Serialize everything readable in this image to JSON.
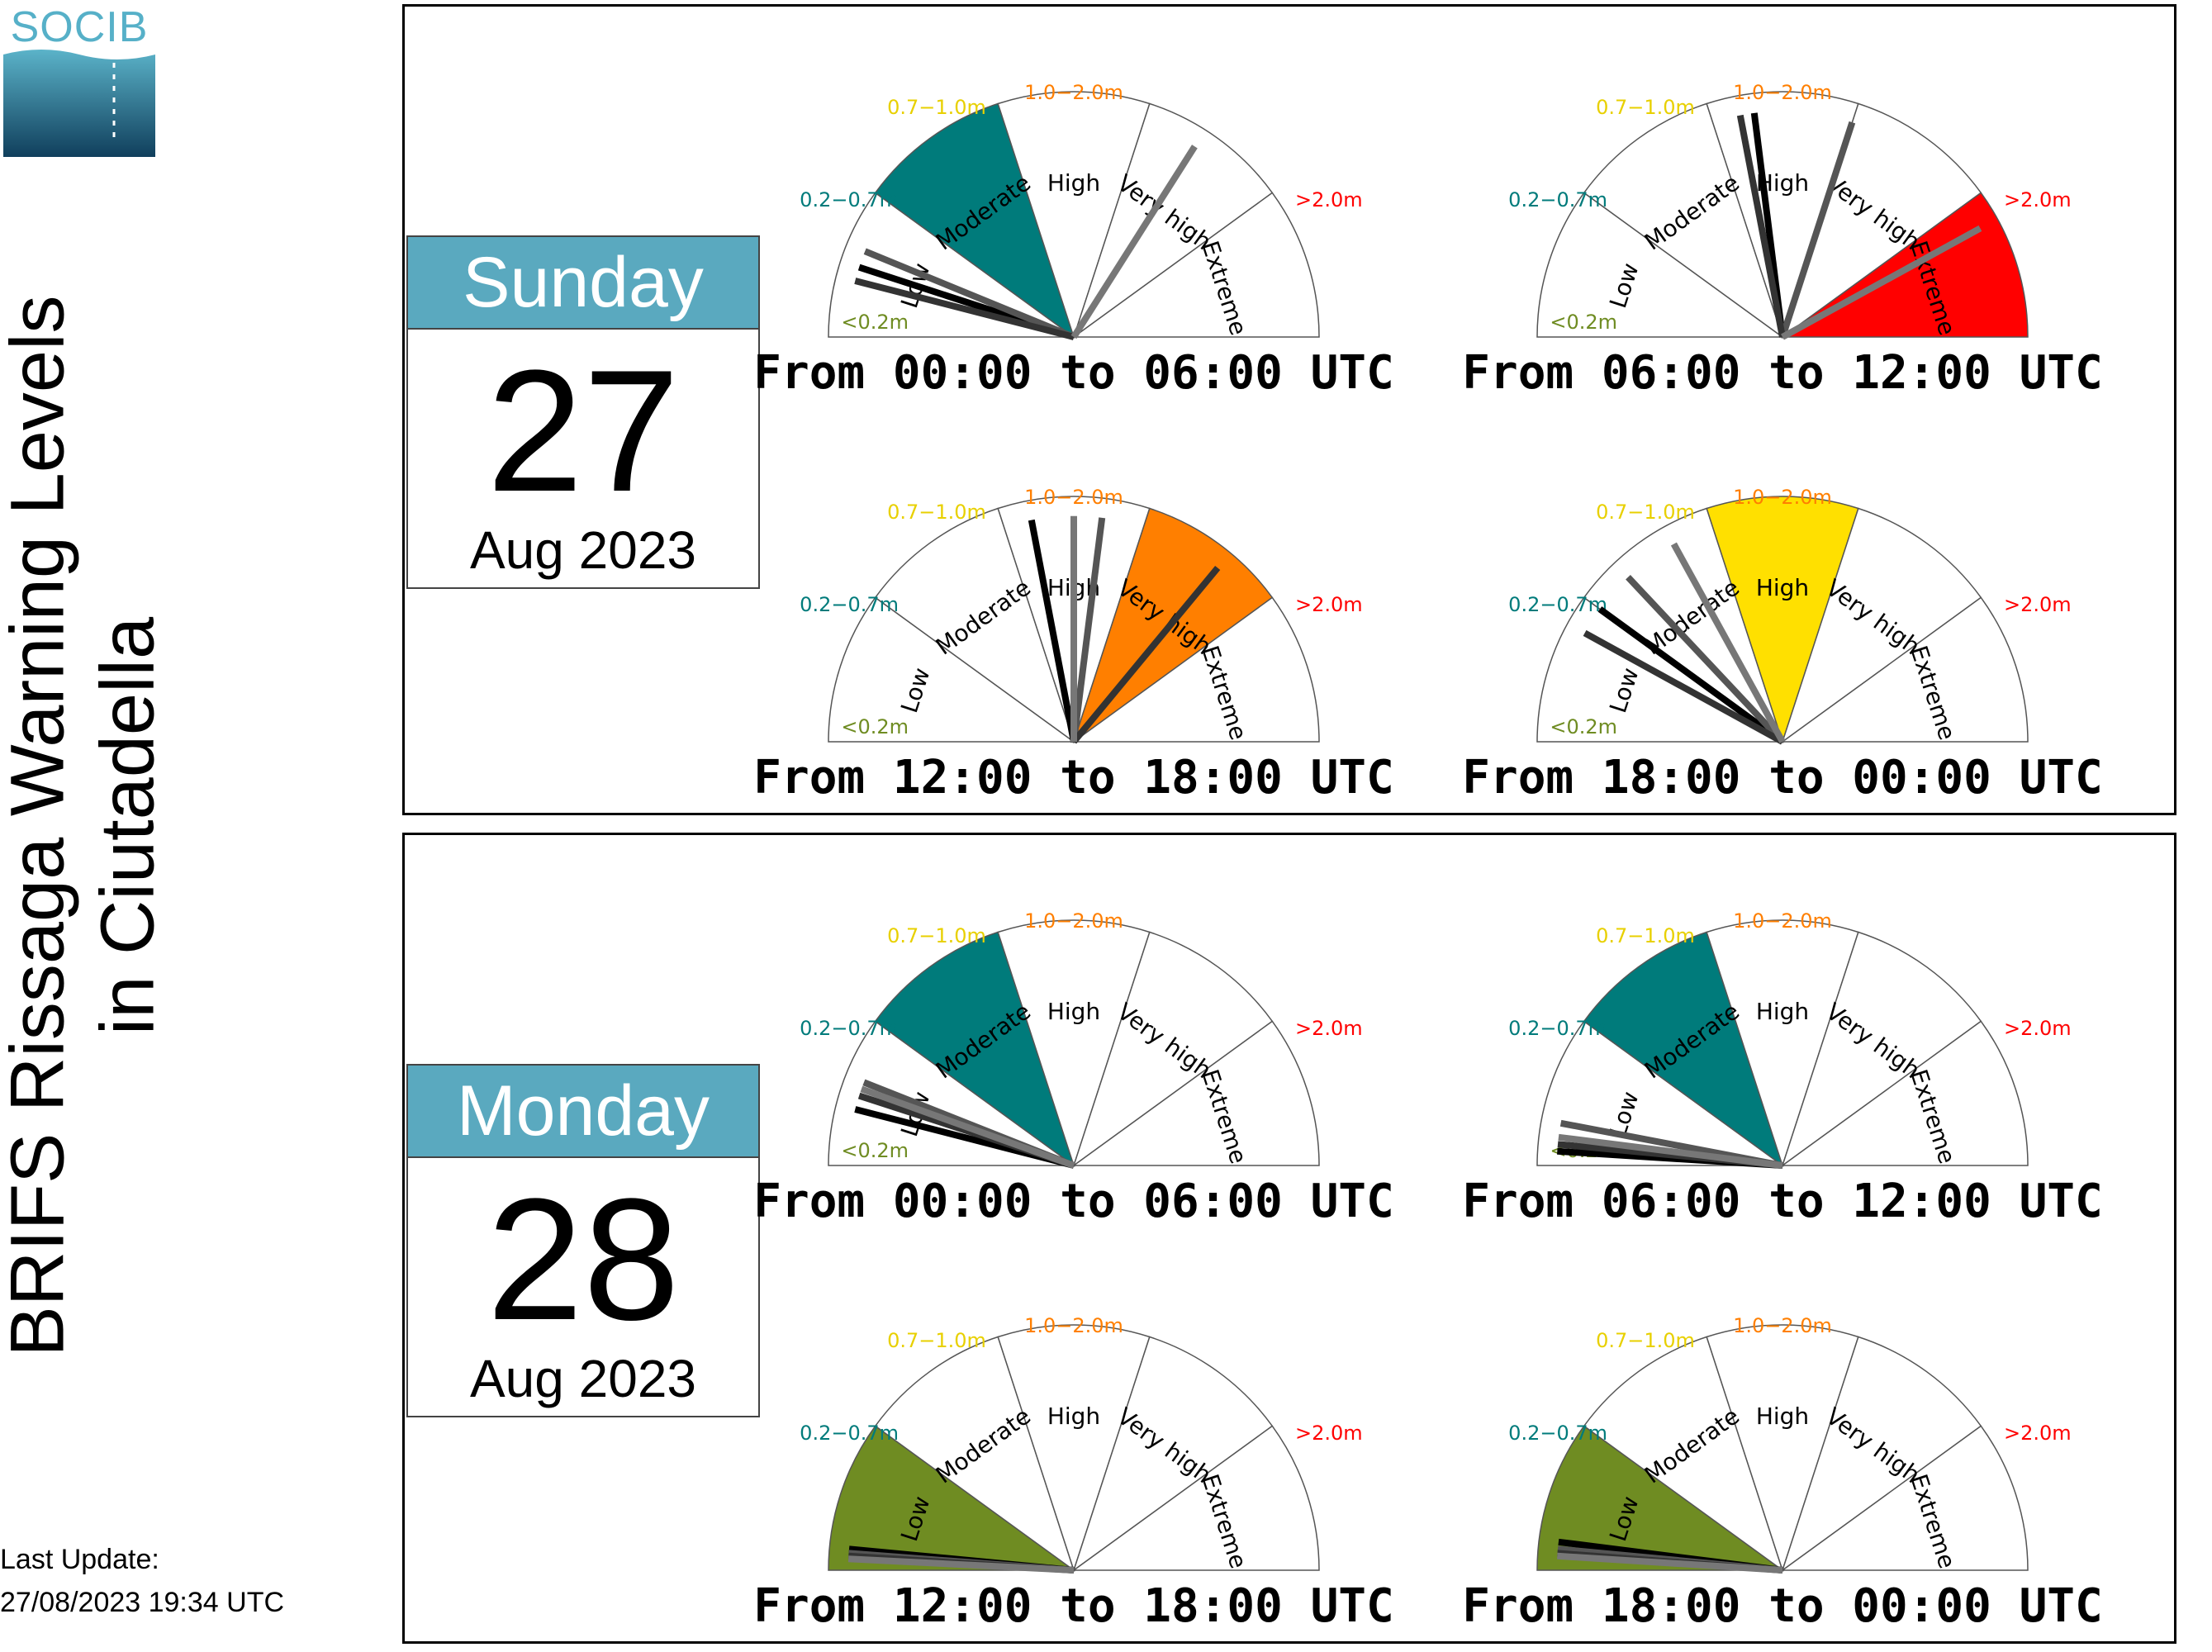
{
  "title": {
    "line1": "BRIFS Rissaga Warning Levels",
    "line2": "in Ciutadella"
  },
  "logo_text": "SOCIB",
  "last_update": {
    "label": "Last Update:",
    "value": "27/08/2023 19:34 UTC"
  },
  "levels": [
    {
      "label": "Low",
      "range": "<0.2m",
      "color": "#6f8c22",
      "text_color": "#6f8c22"
    },
    {
      "label": "Moderate",
      "range": "0.2−0.7m",
      "color": "#007b7b",
      "text_color": "#007b7b"
    },
    {
      "label": "High",
      "range": "0.7−1.0m",
      "color": "#ffe000",
      "text_color": "#e8d000"
    },
    {
      "label": "Very high",
      "range": "1.0−2.0m",
      "color": "#ff7f00",
      "text_color": "#ff7f00"
    },
    {
      "label": "Extreme",
      "range": ">2.0m",
      "color": "#ff0000",
      "text_color": "#ff0000"
    }
  ],
  "days": [
    {
      "weekday": "Sunday",
      "day": "27",
      "month_year": "Aug 2023",
      "gauges": [
        {
          "label": "From 00:00 to 06:00 UTC",
          "active": 1,
          "needles": [
            0.5,
            0.62,
            0.4,
            3.4
          ]
        },
        {
          "label": "From 06:00 to 12:00 UTC",
          "active": 4,
          "needles": [
            2.3,
            3.0,
            2.2,
            4.2
          ]
        },
        {
          "label": "From 12:00 to 18:00 UTC",
          "active": 3,
          "needles": [
            2.2,
            2.7,
            3.6,
            2.5
          ]
        },
        {
          "label": "From 18:00 to 00:00 UTC",
          "active": 2,
          "needles": [
            1.0,
            1.3,
            0.8,
            1.7
          ]
        }
      ]
    },
    {
      "weekday": "Monday",
      "day": "28",
      "month_year": "Aug 2023",
      "gauges": [
        {
          "label": "From 00:00 to 06:00 UTC",
          "active": 1,
          "needles": [
            0.4,
            0.6,
            0.5,
            0.55
          ]
        },
        {
          "label": "From 06:00 to 12:00 UTC",
          "active": 1,
          "needles": [
            0.1,
            0.3,
            0.15,
            0.2
          ]
        },
        {
          "label": "From 12:00 to 18:00 UTC",
          "active": 0,
          "needles": [
            0.15,
            0.12,
            0.1,
            0.08
          ]
        },
        {
          "label": "From 18:00 to 00:00 UTC",
          "active": 0,
          "needles": [
            0.2,
            0.15,
            0.12,
            0.1
          ]
        }
      ]
    }
  ]
}
